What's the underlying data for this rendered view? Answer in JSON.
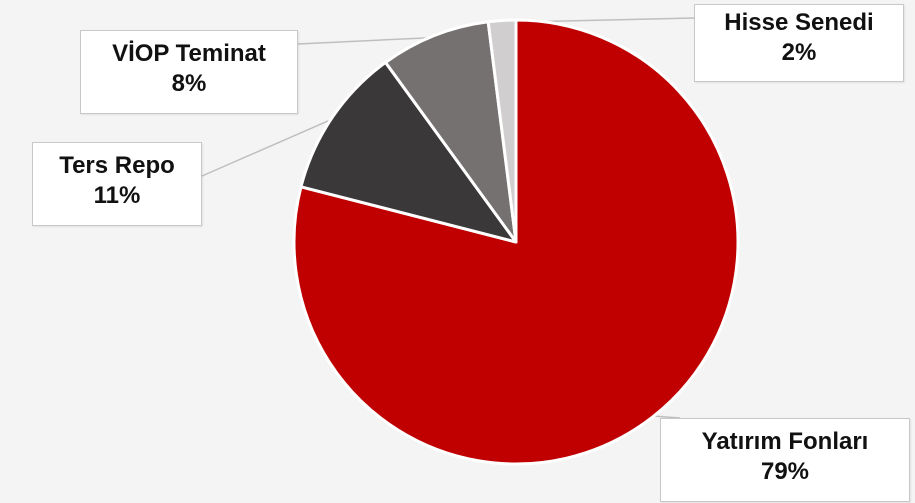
{
  "chart_data": {
    "type": "pie",
    "title": "",
    "slices": [
      {
        "name": "Yatırım Fonları",
        "value": 79,
        "label": "79%",
        "color": "#c00000"
      },
      {
        "name": "Ters Repo",
        "value": 11,
        "label": "11%",
        "color": "#3a3839"
      },
      {
        "name": "VİOP Teminat",
        "value": 8,
        "label": "8%",
        "color": "#767171"
      },
      {
        "name": "Hisse Senedi",
        "value": 2,
        "label": "2%",
        "color": "#d0cece"
      }
    ],
    "start_angle_deg": 0,
    "direction": "clockwise",
    "legend": "none"
  },
  "labels": {
    "hisse": {
      "name": "Hisse Senedi",
      "pct": "2%"
    },
    "viop": {
      "name": "VİOP Teminat",
      "pct": "8%"
    },
    "ters": {
      "name": "Ters Repo",
      "pct": "11%"
    },
    "yatirim": {
      "name": "Yatırım Fonları",
      "pct": "79%"
    }
  }
}
